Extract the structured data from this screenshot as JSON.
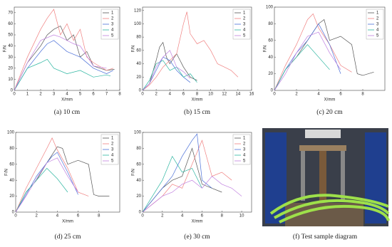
{
  "chart_data": [
    {
      "type": "line",
      "caption": "(a) 10 cm",
      "xlabel": "X/mm",
      "ylabel": "F/N",
      "xlim": [
        0,
        8
      ],
      "xticks": [
        0,
        1,
        2,
        3,
        4,
        5,
        6,
        7,
        8
      ],
      "ylim": [
        0,
        75
      ],
      "yticks": [
        0,
        10,
        20,
        30,
        40,
        50,
        60,
        70
      ],
      "legend": "upper right",
      "series": [
        {
          "name": "1",
          "color": "#555555",
          "x": [
            0,
            1,
            2,
            2.5,
            3,
            3.5,
            4,
            4.5,
            5,
            5.5,
            6,
            7,
            7.6
          ],
          "values": [
            0,
            25,
            40,
            50,
            55,
            58,
            45,
            50,
            30,
            35,
            22,
            18,
            19
          ]
        },
        {
          "name": "2",
          "color": "#f08080",
          "x": [
            0,
            1,
            2,
            2.5,
            3,
            3.5,
            4,
            4.5,
            5,
            5.5,
            6,
            7,
            7.5
          ],
          "values": [
            0,
            30,
            55,
            65,
            73,
            50,
            60,
            45,
            55,
            30,
            25,
            18,
            20
          ]
        },
        {
          "name": "3",
          "color": "#4a6fd8",
          "x": [
            0,
            1,
            2,
            2.5,
            3,
            3.5,
            4,
            5,
            6,
            7,
            7.5
          ],
          "values": [
            0,
            20,
            35,
            42,
            45,
            40,
            35,
            30,
            20,
            15,
            18
          ]
        },
        {
          "name": "4",
          "color": "#2bb5a0",
          "x": [
            0,
            1,
            2,
            2.5,
            3,
            4,
            5,
            6,
            7,
            7.3
          ],
          "values": [
            0,
            20,
            25,
            28,
            20,
            15,
            18,
            12,
            14,
            13
          ]
        },
        {
          "name": "5",
          "color": "#c080e0",
          "x": [
            0,
            1,
            2,
            3,
            3.5,
            4,
            4.5,
            5,
            6,
            7
          ],
          "values": [
            0,
            25,
            45,
            50,
            48,
            45,
            42,
            40,
            22,
            20
          ]
        }
      ]
    },
    {
      "type": "line",
      "caption": "(b) 15 cm",
      "xlabel": "X/mm",
      "ylabel": "F/N",
      "xlim": [
        0,
        16
      ],
      "xticks": [
        0,
        2,
        4,
        6,
        8,
        10,
        12,
        14,
        16
      ],
      "ylim": [
        0,
        125
      ],
      "yticks": [
        0,
        20,
        40,
        60,
        80,
        100,
        120
      ],
      "legend": "upper right",
      "series": [
        {
          "name": "1",
          "color": "#555555",
          "x": [
            0,
            1,
            2,
            2.5,
            3,
            3.5,
            4,
            5,
            6,
            7,
            8
          ],
          "values": [
            0,
            10,
            45,
            65,
            72,
            50,
            40,
            55,
            35,
            20,
            15
          ]
        },
        {
          "name": "2",
          "color": "#f08080",
          "x": [
            0,
            1,
            2,
            3,
            4,
            5,
            6,
            6.5,
            7,
            8,
            9,
            10,
            11,
            12,
            13,
            14
          ],
          "values": [
            0,
            8,
            20,
            35,
            45,
            55,
            100,
            118,
            85,
            70,
            75,
            60,
            40,
            35,
            30,
            20
          ]
        },
        {
          "name": "3",
          "color": "#4a6fd8",
          "x": [
            0,
            1,
            2,
            3,
            4,
            5,
            6,
            7
          ],
          "values": [
            0,
            10,
            30,
            50,
            45,
            30,
            20,
            12
          ]
        },
        {
          "name": "4",
          "color": "#2bb5a0",
          "x": [
            0,
            1,
            2,
            3,
            4,
            5,
            6,
            7,
            8
          ],
          "values": [
            0,
            15,
            40,
            45,
            30,
            35,
            20,
            25,
            12
          ]
        },
        {
          "name": "5",
          "color": "#c080e0",
          "x": [
            0,
            1,
            2,
            3,
            4,
            5,
            6,
            7
          ],
          "values": [
            0,
            10,
            35,
            50,
            60,
            35,
            28,
            18
          ]
        }
      ]
    },
    {
      "type": "line",
      "caption": "(c) 20 cm",
      "xlabel": "X/mm",
      "ylabel": "F/N",
      "xlim": [
        0,
        10
      ],
      "xticks": [
        0,
        2,
        4,
        6,
        8
      ],
      "ylim": [
        0,
        100
      ],
      "yticks": [
        0,
        20,
        40,
        60,
        80,
        100
      ],
      "legend": "upper right",
      "series": [
        {
          "name": "1",
          "color": "#555555",
          "x": [
            0,
            1,
            2,
            3,
            3.5,
            4,
            4.5,
            5,
            6,
            7,
            7.5,
            8,
            9
          ],
          "values": [
            0,
            25,
            40,
            60,
            70,
            80,
            85,
            60,
            65,
            55,
            20,
            18,
            22
          ]
        },
        {
          "name": "2",
          "color": "#f08080",
          "x": [
            0,
            1,
            2,
            3,
            3.5,
            4,
            5,
            6,
            7
          ],
          "values": [
            0,
            30,
            55,
            85,
            92,
            75,
            55,
            30,
            22
          ]
        },
        {
          "name": "3",
          "color": "#4a6fd8",
          "x": [
            0,
            1,
            2,
            3,
            3.5,
            4,
            5,
            6
          ],
          "values": [
            0,
            25,
            45,
            60,
            70,
            80,
            55,
            20
          ]
        },
        {
          "name": "4",
          "color": "#2bb5a0",
          "x": [
            0,
            1,
            2,
            3,
            4,
            5
          ],
          "values": [
            0,
            25,
            40,
            55,
            40,
            25
          ]
        },
        {
          "name": "5",
          "color": "#c080e0",
          "x": [
            0,
            1,
            2,
            3,
            4,
            5,
            6
          ],
          "values": [
            0,
            20,
            45,
            65,
            70,
            45,
            25
          ]
        }
      ]
    },
    {
      "type": "line",
      "caption": "(d) 25 cm",
      "xlabel": "X/mm",
      "ylabel": "F/N",
      "xlim": [
        0,
        10
      ],
      "xticks": [
        0,
        2,
        4,
        6,
        8
      ],
      "ylim": [
        0,
        100
      ],
      "yticks": [
        0,
        20,
        40,
        60,
        80,
        100
      ],
      "legend": "upper right",
      "series": [
        {
          "name": "1",
          "color": "#555555",
          "x": [
            0,
            1,
            2,
            3,
            3.5,
            4,
            4.5,
            5,
            6,
            7,
            7.5,
            8,
            9
          ],
          "values": [
            0,
            25,
            40,
            62,
            72,
            82,
            80,
            60,
            65,
            60,
            22,
            20,
            20
          ]
        },
        {
          "name": "2",
          "color": "#f08080",
          "x": [
            0,
            1,
            2,
            3,
            3.5,
            4,
            5,
            6,
            7
          ],
          "values": [
            0,
            30,
            55,
            80,
            93,
            78,
            55,
            25,
            20
          ]
        },
        {
          "name": "3",
          "color": "#4a6fd8",
          "x": [
            0,
            1,
            2,
            3,
            3.5,
            4,
            5,
            6
          ],
          "values": [
            0,
            22,
            45,
            62,
            70,
            75,
            50,
            22
          ]
        },
        {
          "name": "4",
          "color": "#2bb5a0",
          "x": [
            0,
            1,
            2,
            3,
            4,
            5
          ],
          "values": [
            0,
            25,
            40,
            55,
            42,
            25
          ]
        },
        {
          "name": "5",
          "color": "#c080e0",
          "x": [
            0,
            1,
            2,
            3,
            4,
            5,
            6
          ],
          "values": [
            0,
            20,
            42,
            62,
            68,
            45,
            25
          ]
        }
      ]
    },
    {
      "type": "line",
      "caption": "(e) 30 cm",
      "xlabel": "X/mm",
      "ylabel": "F/N",
      "xlim": [
        0,
        11
      ],
      "xticks": [
        0,
        2,
        4,
        6,
        8,
        10
      ],
      "ylim": [
        0,
        100
      ],
      "yticks": [
        0,
        20,
        40,
        60,
        80,
        100
      ],
      "legend": "upper right",
      "series": [
        {
          "name": "1",
          "color": "#555555",
          "x": [
            0,
            1,
            2,
            3,
            4,
            5,
            6,
            7,
            8
          ],
          "values": [
            0,
            15,
            30,
            40,
            45,
            80,
            35,
            30,
            25
          ]
        },
        {
          "name": "2",
          "color": "#f08080",
          "x": [
            0,
            1,
            2,
            3,
            4,
            5,
            6,
            7,
            8,
            9
          ],
          "values": [
            0,
            10,
            20,
            35,
            30,
            60,
            90,
            45,
            50,
            40
          ]
        },
        {
          "name": "3",
          "color": "#4a6fd8",
          "x": [
            0,
            1,
            2,
            3,
            4,
            5,
            5.5,
            6,
            7
          ],
          "values": [
            0,
            15,
            30,
            45,
            70,
            90,
            98,
            40,
            30
          ]
        },
        {
          "name": "4",
          "color": "#2bb5a0",
          "x": [
            0,
            1,
            2,
            3,
            4,
            5,
            6
          ],
          "values": [
            0,
            20,
            40,
            70,
            50,
            55,
            30
          ]
        },
        {
          "name": "5",
          "color": "#c080e0",
          "x": [
            0,
            1,
            2,
            3,
            4,
            5,
            6,
            7,
            8,
            9,
            10
          ],
          "values": [
            0,
            10,
            20,
            25,
            35,
            40,
            30,
            45,
            35,
            30,
            20
          ]
        }
      ]
    }
  ],
  "photo": {
    "caption": "(f) Test sample diagram"
  }
}
